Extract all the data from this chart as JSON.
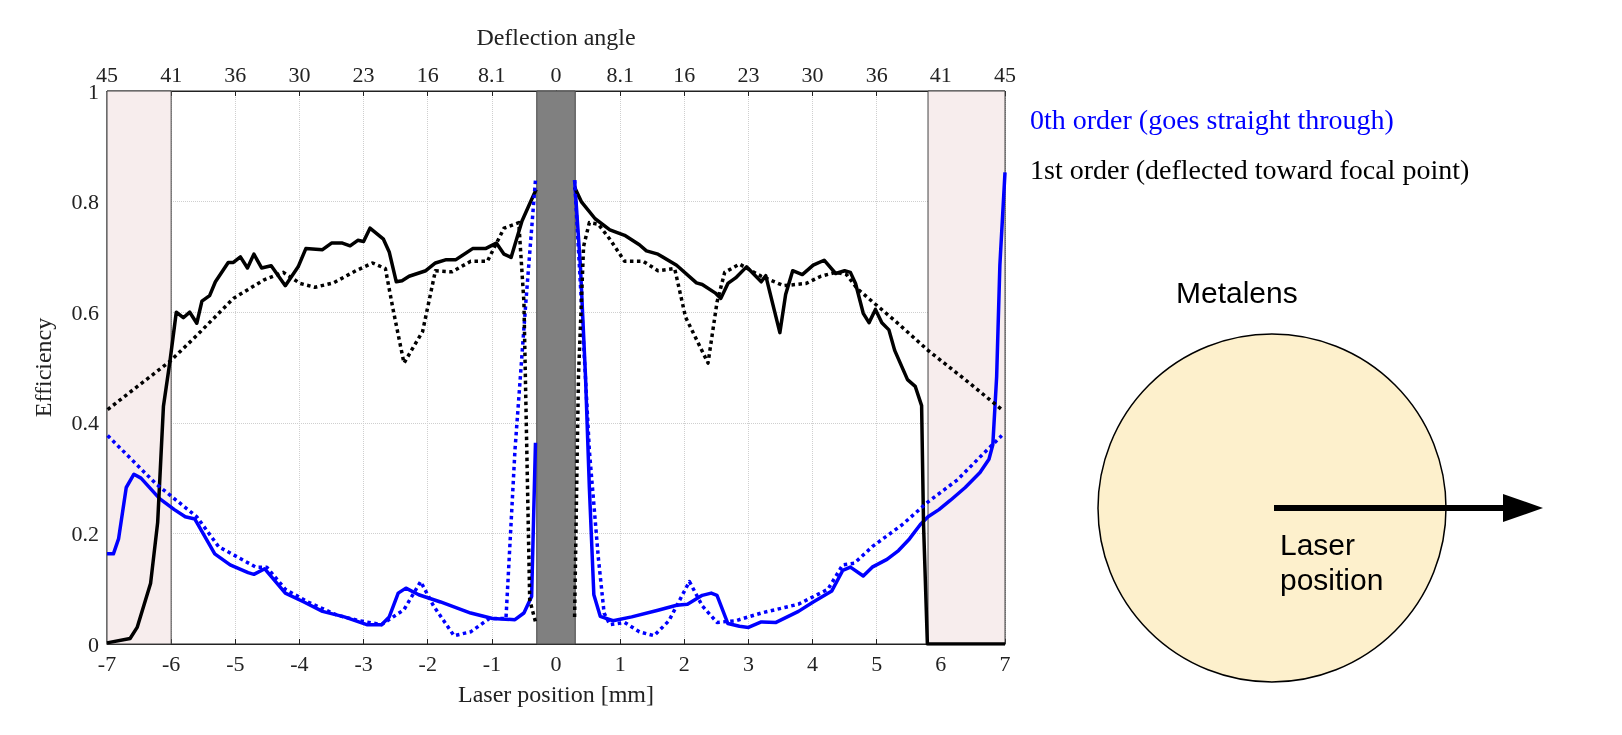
{
  "chart_data": {
    "type": "line",
    "title": "Deflection angle",
    "xlabel": "Laser position [mm]",
    "ylabel": "Efficiency",
    "xlim": [
      -7,
      7
    ],
    "xticks": [
      -7,
      -6,
      -5,
      -4,
      -3,
      -2,
      -1,
      0,
      1,
      2,
      3,
      4,
      5,
      6,
      7
    ],
    "ylim": [
      0,
      1
    ],
    "yticks": [
      0,
      0.2,
      0.4,
      0.6,
      0.8,
      1
    ],
    "grid": true,
    "legend": "top right",
    "marker": "none",
    "bands": [
      {
        "axis": "x",
        "from": -7,
        "to": -6,
        "color": "#f7eded"
      },
      {
        "axis": "x",
        "from": 5.8,
        "to": 7,
        "color": "#f7eded"
      },
      {
        "axis": "x",
        "from": -0.3,
        "to": 0.3,
        "color": "#808080"
      }
    ],
    "annotations": [
      "Metalens",
      "Laser position",
      "45",
      "41",
      "36",
      "30",
      "23",
      "16",
      "8.1",
      "0",
      "8.1",
      "16",
      "23",
      "30",
      "36",
      "41",
      "45"
    ],
    "series": [
      {
        "name": "0th order (goes straight through)",
        "color": "#0000ff",
        "line_style": "solid",
        "x": [
          -7,
          -6.9,
          -6.82,
          -6.7,
          -6.58,
          -6.47,
          -6.18,
          -5.95,
          -5.78,
          -5.63,
          -5.32,
          -5.08,
          -4.8,
          -4.71,
          -4.54,
          -4.22,
          -3.93,
          -3.64,
          -3.3,
          -2.95,
          -2.72,
          -2.6,
          -2.46,
          -2.34,
          -2.14,
          -1.8,
          -1.33,
          -0.99,
          -0.64,
          -0.5,
          -0.38,
          -0.32,
          0,
          0.29,
          0.38,
          0.46,
          0.52,
          0.59,
          0.69,
          0.89,
          1.18,
          1.59,
          1.88,
          2.05,
          2.28,
          2.42,
          2.51,
          2.68,
          2.86,
          3.0,
          3.2,
          3.43,
          3.78,
          4.01,
          4.3,
          4.47,
          4.59,
          4.79,
          4.93,
          5.16,
          5.34,
          5.51,
          5.68,
          5.8,
          5.97,
          6.15,
          6.38,
          6.61,
          6.75,
          6.81,
          6.87,
          6.92,
          7
        ],
        "values": [
          0.163,
          0.163,
          0.19,
          0.283,
          0.307,
          0.3,
          0.263,
          0.243,
          0.23,
          0.226,
          0.163,
          0.143,
          0.129,
          0.126,
          0.136,
          0.092,
          0.076,
          0.059,
          0.049,
          0.035,
          0.035,
          0.049,
          0.092,
          0.101,
          0.089,
          0.076,
          0.056,
          0.046,
          0.044,
          0.056,
          0.086,
          0.364,
          null,
          0.839,
          0.685,
          0.484,
          0.283,
          0.089,
          0.05,
          0.042,
          0.049,
          0.061,
          0.07,
          0.072,
          0.088,
          0.092,
          0.088,
          0.037,
          0.032,
          0.03,
          0.04,
          0.039,
          0.059,
          0.076,
          0.096,
          0.133,
          0.139,
          0.123,
          0.139,
          0.153,
          0.169,
          0.19,
          0.216,
          0.23,
          0.243,
          0.26,
          0.283,
          0.31,
          0.334,
          0.36,
          0.484,
          0.685,
          0.853
        ]
      },
      {
        "name": "1st order (deflected toward focal point)",
        "color": "#000000",
        "line_style": "solid",
        "x": [
          -7,
          -6.64,
          -6.53,
          -6.32,
          -6.21,
          -6.12,
          -6.02,
          -5.92,
          -5.81,
          -5.71,
          -5.6,
          -5.52,
          -5.4,
          -5.31,
          -5.11,
          -5.03,
          -4.92,
          -4.81,
          -4.71,
          -4.59,
          -4.44,
          -4.22,
          -4.02,
          -3.9,
          -3.64,
          -3.5,
          -3.33,
          -3.21,
          -3.09,
          -3.0,
          -2.9,
          -2.69,
          -2.6,
          -2.49,
          -2.4,
          -2.29,
          -2.03,
          -1.88,
          -1.71,
          -1.56,
          -1.3,
          -1.1,
          -0.93,
          -0.81,
          -0.7,
          -0.53,
          -0.41,
          -0.31,
          0,
          0.29,
          0.4,
          0.61,
          0.84,
          1.07,
          1.3,
          1.41,
          1.59,
          1.88,
          2.19,
          2.28,
          2.48,
          2.57,
          2.68,
          2.8,
          2.97,
          3.2,
          3.27,
          3.4,
          3.49,
          3.58,
          3.69,
          3.84,
          4.01,
          4.18,
          4.36,
          4.5,
          4.59,
          4.67,
          4.79,
          4.88,
          4.98,
          5.08,
          5.19,
          5.28,
          5.48,
          5.6,
          5.7,
          5.73,
          5.79,
          7
        ],
        "values": [
          0.002,
          0.01,
          0.03,
          0.11,
          0.22,
          0.43,
          0.51,
          0.6,
          0.59,
          0.6,
          0.58,
          0.62,
          0.63,
          0.655,
          0.69,
          0.69,
          0.7,
          0.68,
          0.705,
          0.68,
          0.684,
          0.648,
          0.682,
          0.715,
          0.713,
          0.725,
          0.725,
          0.72,
          0.73,
          0.728,
          0.752,
          0.732,
          0.709,
          0.655,
          0.657,
          0.665,
          0.675,
          0.689,
          0.695,
          0.695,
          0.715,
          0.715,
          0.725,
          0.705,
          0.699,
          0.765,
          0.796,
          0.822,
          null,
          0.826,
          0.799,
          0.769,
          0.749,
          0.739,
          0.722,
          0.711,
          0.705,
          0.685,
          0.653,
          0.65,
          0.635,
          0.625,
          0.652,
          0.662,
          0.682,
          0.655,
          0.666,
          0.605,
          0.563,
          0.632,
          0.675,
          0.668,
          0.685,
          0.694,
          0.67,
          0.675,
          0.672,
          0.652,
          0.598,
          0.581,
          0.605,
          0.581,
          0.568,
          0.531,
          0.478,
          0.466,
          0.431,
          0.216,
          0,
          0
        ]
      },
      {
        "color": "#0000ff",
        "line_style": "dotted",
        "x": [
          -6.99,
          -6.24,
          -5.6,
          -5.26,
          -4.68,
          -4.51,
          -4.22,
          -3.87,
          -3.41,
          -3.06,
          -2.72,
          -2.37,
          -2.11,
          -1.91,
          -1.59,
          -1.33,
          -1.04,
          -0.78,
          -0.64,
          -0.47,
          -0.32,
          0,
          0.29,
          0.38,
          0.52,
          0.66,
          0.75,
          0.84,
          1.07,
          1.3,
          1.53,
          1.76,
          2.08,
          2.28,
          2.51,
          2.8,
          3.2,
          3.78,
          4.24,
          4.47,
          4.65,
          4.93,
          5.4,
          5.8,
          6.26,
          6.66,
          6.95
        ],
        "values": [
          0.377,
          0.29,
          0.23,
          0.176,
          0.139,
          0.139,
          0.099,
          0.076,
          0.052,
          0.042,
          0.035,
          0.062,
          0.113,
          0.069,
          0.015,
          0.022,
          0.046,
          0.046,
          0.35,
          0.618,
          0.839,
          null,
          0.839,
          0.652,
          0.35,
          0.156,
          0.056,
          0.035,
          0.039,
          0.022,
          0.015,
          0.042,
          0.113,
          0.069,
          0.039,
          0.042,
          0.056,
          0.072,
          0.099,
          0.143,
          0.146,
          0.176,
          0.216,
          0.257,
          0.297,
          0.344,
          0.377
        ]
      },
      {
        "color": "#000000",
        "line_style": "dotted",
        "x": [
          -6.99,
          -6.02,
          -5.6,
          -5.03,
          -4.56,
          -4.25,
          -3.99,
          -3.76,
          -3.47,
          -3.12,
          -2.86,
          -2.66,
          -2.54,
          -2.37,
          -2.08,
          -1.88,
          -1.62,
          -1.33,
          -1.07,
          -0.81,
          -0.58,
          -0.5,
          -0.41,
          -0.32,
          0,
          0.29,
          0.35,
          0.43,
          0.52,
          0.66,
          0.84,
          1.07,
          1.36,
          1.59,
          1.85,
          2.02,
          2.37,
          2.51,
          2.63,
          2.86,
          3.2,
          3.55,
          3.9,
          4.13,
          4.36,
          4.53,
          4.7,
          5.28,
          5.8,
          6.38,
          6.95
        ],
        "values": [
          0.424,
          0.511,
          0.558,
          0.625,
          0.658,
          0.672,
          0.652,
          0.645,
          0.653,
          0.675,
          0.689,
          0.679,
          0.605,
          0.508,
          0.565,
          0.675,
          0.673,
          0.692,
          0.692,
          0.752,
          0.762,
          0.618,
          0.08,
          0.04,
          null,
          0.049,
          0.484,
          0.719,
          0.762,
          0.759,
          0.732,
          0.692,
          0.692,
          0.675,
          0.679,
          0.591,
          0.508,
          0.618,
          0.672,
          0.687,
          0.665,
          0.648,
          0.652,
          0.665,
          0.672,
          0.668,
          0.642,
          0.585,
          0.531,
          0.478,
          0.424
        ]
      }
    ]
  }
}
